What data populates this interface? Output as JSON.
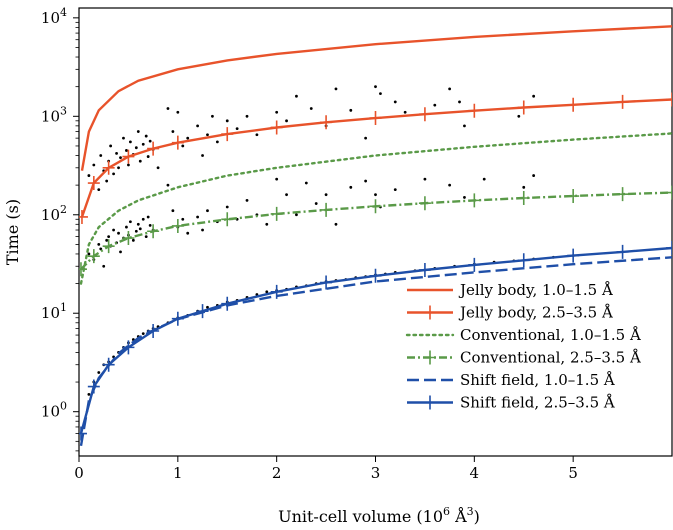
{
  "chart_data": {
    "type": "line",
    "xlabel": "Unit-cell volume (10",
    "xlabel_exp": "6",
    "xlabel_unit": " Å",
    "xlabel_unit_exp": "3",
    "xlabel_close": ")",
    "ylabel": "Time (s)",
    "xlim": [
      0,
      6.0
    ],
    "ylim_log10": [
      -0.45,
      4.1
    ],
    "y_scale": "log",
    "grid": false,
    "legend_position": "lower-right",
    "x_ticks": [
      {
        "label": "0",
        "value": 0
      },
      {
        "label": "1",
        "value": 1
      },
      {
        "label": "2",
        "value": 2
      },
      {
        "label": "3",
        "value": 3
      },
      {
        "label": "4",
        "value": 4
      },
      {
        "label": "5",
        "value": 5
      }
    ],
    "y_ticks": [
      {
        "base": "10",
        "exp": "0",
        "value": 1
      },
      {
        "base": "10",
        "exp": "1",
        "value": 10
      },
      {
        "base": "10",
        "exp": "2",
        "value": 100
      },
      {
        "base": "10",
        "exp": "3",
        "value": 1000
      },
      {
        "base": "10",
        "exp": "4",
        "value": 10000
      }
    ],
    "series": [
      {
        "name": "Jelly body, 1.0–1.5 Å",
        "color": "#e8532b",
        "style": "solid",
        "marker": "none",
        "x": [
          0.03,
          0.1,
          0.2,
          0.4,
          0.6,
          1.0,
          1.5,
          2.0,
          3.0,
          4.0,
          5.0,
          6.0
        ],
        "y": [
          280,
          700,
          1150,
          1800,
          2300,
          3000,
          3700,
          4300,
          5400,
          6400,
          7300,
          8200
        ]
      },
      {
        "name": "Jelly body, 2.5–3.5 Å",
        "color": "#e8532b",
        "style": "solid",
        "marker": "plus",
        "x": [
          0.03,
          0.15,
          0.3,
          0.5,
          0.75,
          1.0,
          1.5,
          2.0,
          2.5,
          3.0,
          3.5,
          4.0,
          4.5,
          5.0,
          5.5,
          6.0
        ],
        "y": [
          95,
          210,
          300,
          390,
          470,
          540,
          660,
          770,
          870,
          960,
          1050,
          1140,
          1230,
          1310,
          1400,
          1480
        ]
      },
      {
        "name": "Conventional, 1.0–1.5 Å",
        "color": "#5a9a48",
        "style": "dotted",
        "marker": "none",
        "x": [
          0.02,
          0.1,
          0.2,
          0.4,
          0.6,
          1.0,
          1.5,
          2.0,
          3.0,
          4.0,
          5.0,
          6.0
        ],
        "y": [
          20,
          50,
          75,
          110,
          140,
          190,
          250,
          300,
          400,
          490,
          580,
          670
        ]
      },
      {
        "name": "Conventional, 2.5–3.5 Å",
        "color": "#5a9a48",
        "style": "dashdot",
        "marker": "plus",
        "x": [
          0.02,
          0.15,
          0.3,
          0.5,
          0.75,
          1.0,
          1.5,
          2.0,
          2.5,
          3.0,
          3.5,
          4.0,
          4.5,
          5.0,
          5.5,
          6.0
        ],
        "y": [
          28,
          38,
          48,
          58,
          68,
          77,
          90,
          102,
          112,
          122,
          131,
          140,
          148,
          155,
          162,
          168
        ]
      },
      {
        "name": "Shift field, 1.0–1.5 Å",
        "color": "#1f4fa8",
        "style": "dashed",
        "marker": "none",
        "x": [
          0.02,
          0.1,
          0.2,
          0.4,
          0.6,
          0.8,
          1.0,
          1.5,
          2.0,
          3.0,
          4.0,
          5.0,
          6.0
        ],
        "y": [
          0.45,
          1.3,
          2.2,
          3.9,
          5.6,
          7.1,
          8.7,
          12.0,
          15.0,
          21.0,
          26.0,
          31.5,
          37.0
        ]
      },
      {
        "name": "Shift field, 2.5–3.5 Å",
        "color": "#1f4fa8",
        "style": "solid",
        "marker": "plus",
        "x": [
          0.02,
          0.15,
          0.3,
          0.5,
          0.75,
          1.0,
          1.25,
          1.5,
          2.0,
          2.5,
          3.0,
          3.5,
          4.0,
          4.5,
          5.0,
          5.5,
          6.0
        ],
        "y": [
          0.6,
          1.8,
          3.0,
          4.5,
          6.6,
          8.8,
          10.5,
          12.5,
          16.5,
          20.5,
          24.0,
          27.5,
          31.0,
          34.5,
          38.5,
          42.0,
          46.0
        ]
      }
    ],
    "scatter_points": [
      [
        0.1,
        250
      ],
      [
        0.15,
        320
      ],
      [
        0.2,
        180
      ],
      [
        0.22,
        400
      ],
      [
        0.25,
        280
      ],
      [
        0.28,
        220
      ],
      [
        0.3,
        350
      ],
      [
        0.32,
        500
      ],
      [
        0.35,
        260
      ],
      [
        0.38,
        420
      ],
      [
        0.4,
        300
      ],
      [
        0.42,
        380
      ],
      [
        0.45,
        600
      ],
      [
        0.48,
        450
      ],
      [
        0.5,
        320
      ],
      [
        0.52,
        550
      ],
      [
        0.55,
        410
      ],
      [
        0.58,
        480
      ],
      [
        0.6,
        700
      ],
      [
        0.62,
        350
      ],
      [
        0.65,
        520
      ],
      [
        0.68,
        630
      ],
      [
        0.7,
        390
      ],
      [
        0.72,
        560
      ],
      [
        0.75,
        460
      ],
      [
        0.8,
        300
      ],
      [
        0.9,
        1200
      ],
      [
        0.95,
        700
      ],
      [
        1.0,
        1100
      ],
      [
        1.05,
        500
      ],
      [
        1.1,
        600
      ],
      [
        1.2,
        800
      ],
      [
        1.25,
        400
      ],
      [
        1.3,
        650
      ],
      [
        1.35,
        1000
      ],
      [
        1.4,
        550
      ],
      [
        1.5,
        900
      ],
      [
        1.6,
        750
      ],
      [
        1.7,
        1000
      ],
      [
        1.8,
        650
      ],
      [
        2.0,
        1100
      ],
      [
        2.1,
        900
      ],
      [
        2.2,
        1600
      ],
      [
        2.35,
        1200
      ],
      [
        2.5,
        800
      ],
      [
        2.6,
        1900
      ],
      [
        2.75,
        1150
      ],
      [
        2.9,
        600
      ],
      [
        3.0,
        2000
      ],
      [
        3.05,
        1700
      ],
      [
        3.2,
        1400
      ],
      [
        3.3,
        1100
      ],
      [
        3.6,
        1300
      ],
      [
        3.75,
        1900
      ],
      [
        3.85,
        1400
      ],
      [
        3.9,
        800
      ],
      [
        4.45,
        1000
      ],
      [
        4.6,
        1600
      ],
      [
        0.1,
        40
      ],
      [
        0.15,
        35
      ],
      [
        0.2,
        50
      ],
      [
        0.22,
        45
      ],
      [
        0.25,
        30
      ],
      [
        0.28,
        55
      ],
      [
        0.3,
        60
      ],
      [
        0.32,
        48
      ],
      [
        0.35,
        70
      ],
      [
        0.38,
        52
      ],
      [
        0.4,
        65
      ],
      [
        0.42,
        42
      ],
      [
        0.45,
        58
      ],
      [
        0.48,
        75
      ],
      [
        0.5,
        62
      ],
      [
        0.52,
        85
      ],
      [
        0.55,
        55
      ],
      [
        0.58,
        68
      ],
      [
        0.6,
        80
      ],
      [
        0.62,
        72
      ],
      [
        0.65,
        90
      ],
      [
        0.68,
        60
      ],
      [
        0.7,
        95
      ],
      [
        0.72,
        78
      ],
      [
        0.75,
        70
      ],
      [
        0.9,
        200
      ],
      [
        0.95,
        110
      ],
      [
        1.0,
        75
      ],
      [
        1.05,
        90
      ],
      [
        1.1,
        65
      ],
      [
        1.2,
        95
      ],
      [
        1.25,
        70
      ],
      [
        1.3,
        110
      ],
      [
        1.4,
        85
      ],
      [
        1.5,
        120
      ],
      [
        1.6,
        90
      ],
      [
        1.7,
        140
      ],
      [
        1.8,
        100
      ],
      [
        1.9,
        80
      ],
      [
        2.0,
        230
      ],
      [
        2.1,
        160
      ],
      [
        2.2,
        100
      ],
      [
        2.3,
        210
      ],
      [
        2.4,
        130
      ],
      [
        2.5,
        160
      ],
      [
        2.6,
        80
      ],
      [
        2.75,
        190
      ],
      [
        2.9,
        220
      ],
      [
        3.0,
        160
      ],
      [
        3.05,
        120
      ],
      [
        3.2,
        180
      ],
      [
        3.5,
        230
      ],
      [
        3.75,
        200
      ],
      [
        3.9,
        150
      ],
      [
        4.1,
        230
      ],
      [
        4.5,
        190
      ],
      [
        4.6,
        250
      ],
      [
        0.1,
        1.5
      ],
      [
        0.15,
        2.0
      ],
      [
        0.2,
        2.5
      ],
      [
        0.25,
        3.0
      ],
      [
        0.3,
        3.2
      ],
      [
        0.35,
        3.6
      ],
      [
        0.4,
        4.0
      ],
      [
        0.45,
        4.5
      ],
      [
        0.5,
        5.0
      ],
      [
        0.55,
        5.4
      ],
      [
        0.6,
        5.8
      ],
      [
        0.65,
        6.2
      ],
      [
        0.7,
        6.6
      ],
      [
        0.75,
        7.0
      ],
      [
        0.8,
        7.3
      ],
      [
        0.9,
        8.0
      ],
      [
        1.0,
        9.0
      ],
      [
        1.1,
        9.5
      ],
      [
        1.2,
        10.5
      ],
      [
        1.3,
        11.5
      ],
      [
        1.4,
        12.0
      ],
      [
        1.5,
        13.0
      ],
      [
        1.6,
        13.5
      ],
      [
        1.7,
        14.5
      ],
      [
        1.8,
        15.5
      ],
      [
        1.9,
        16.5
      ],
      [
        2.0,
        17.0
      ],
      [
        2.1,
        17.5
      ],
      [
        2.2,
        18.5
      ],
      [
        2.3,
        19.0
      ],
      [
        2.4,
        20.0
      ],
      [
        2.5,
        21.0
      ],
      [
        2.6,
        21.5
      ],
      [
        2.7,
        22.0
      ],
      [
        2.8,
        23.0
      ],
      [
        2.9,
        23.5
      ],
      [
        3.0,
        24.5
      ],
      [
        3.1,
        25.0
      ],
      [
        3.2,
        26.0
      ],
      [
        3.4,
        27.0
      ],
      [
        3.6,
        28.5
      ],
      [
        3.8,
        30.0
      ],
      [
        4.0,
        31.5
      ],
      [
        4.2,
        33.0
      ],
      [
        4.4,
        34.0
      ],
      [
        4.6,
        35.5
      ],
      [
        4.8,
        37.0
      ],
      [
        5.0,
        38.5
      ]
    ]
  }
}
